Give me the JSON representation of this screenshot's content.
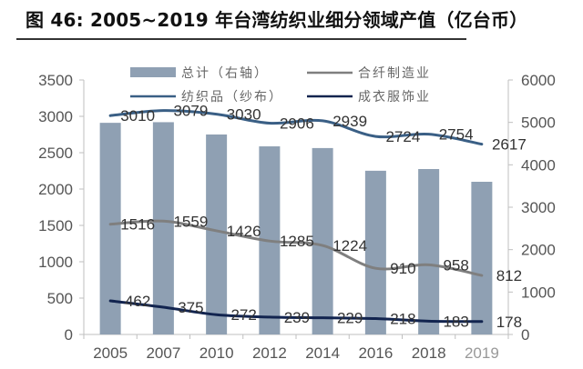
{
  "title": "图 46:  2005~2019 年台湾纺织业细分领域产值（亿台币）",
  "chart_data": {
    "type": "bar+line",
    "title": "图 46:  2005~2019 年台湾纺织业细分领域产值（亿台币）",
    "categories": [
      "2005",
      "2007",
      "2010",
      "2012",
      "2014",
      "2016",
      "2018",
      "2019"
    ],
    "left_axis": {
      "min": 0,
      "max": 3500,
      "ticks": [
        "0",
        "500",
        "1000",
        "1500",
        "2000",
        "2500",
        "3000",
        "3500"
      ]
    },
    "right_axis": {
      "min": 0,
      "max": 6000,
      "ticks": [
        "0",
        "1000",
        "2000",
        "3000",
        "4000",
        "5000",
        "6000"
      ]
    },
    "legend": [
      "总计（右轴）",
      "合纤制造业",
      "纺织品（纱布）",
      "成衣服饰业"
    ],
    "series": [
      {
        "name": "总计（右轴）",
        "type": "bar",
        "axis": "right",
        "color": "#8fa0b3",
        "values": [
          4990,
          5005,
          4715,
          4435,
          4395,
          3860,
          3900,
          3600
        ]
      },
      {
        "name": "合纤制造业",
        "type": "line",
        "axis": "left",
        "color": "#7f7f7f",
        "values": [
          1516,
          1559,
          1426,
          1285,
          1224,
          910,
          958,
          812
        ],
        "labels": [
          "1516",
          "1559",
          "1426",
          "1285",
          "1224",
          "910",
          "958",
          "812"
        ]
      },
      {
        "name": "纺织品（纱布）",
        "type": "line",
        "axis": "left",
        "color": "#3a5f85",
        "values": [
          3010,
          3079,
          3030,
          2906,
          2939,
          2724,
          2754,
          2617
        ],
        "labels": [
          "3010",
          "3079",
          "3030",
          "2906",
          "2939",
          "2724",
          "2754",
          "2617"
        ]
      },
      {
        "name": "成衣服饰业",
        "type": "line",
        "axis": "left",
        "color": "#12244f",
        "values": [
          462,
          375,
          272,
          239,
          229,
          218,
          183,
          178
        ],
        "labels": [
          "462",
          "375",
          "272",
          "239",
          "229",
          "218",
          "183",
          "178"
        ]
      }
    ]
  }
}
